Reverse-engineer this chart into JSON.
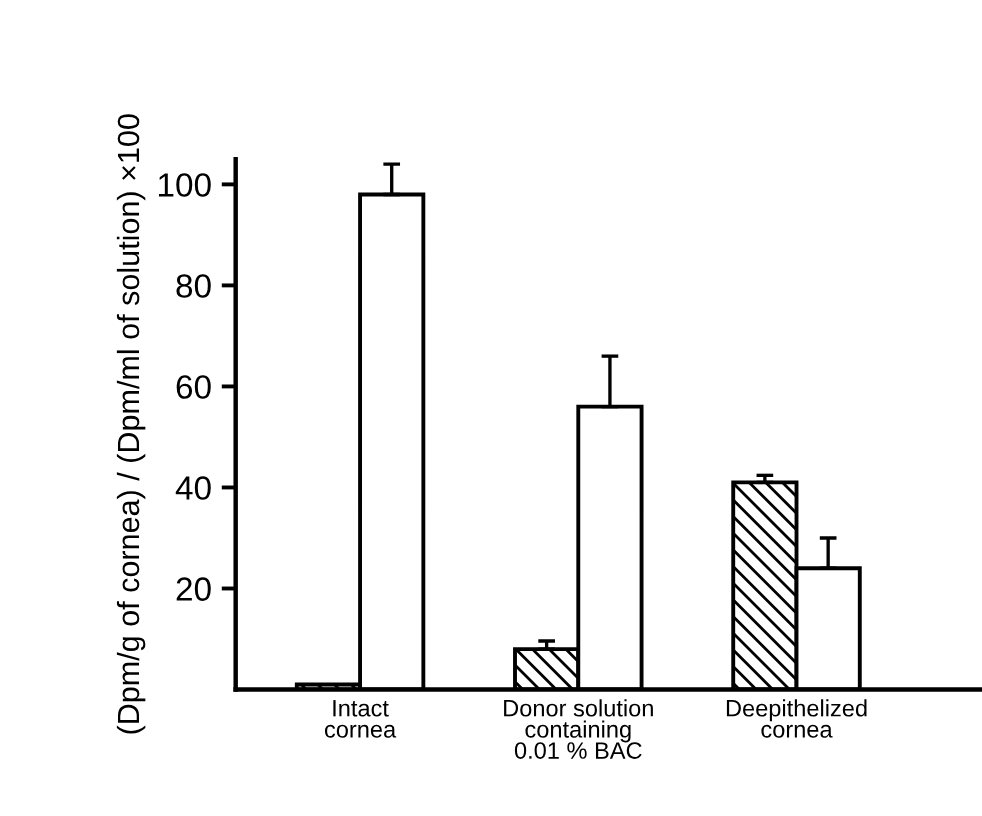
{
  "chart_data": {
    "type": "bar",
    "ylabel": "(Dpm/g of cornea) / (Dpm/ml of solution) ×100",
    "categories": [
      "Intact\ncornea",
      "Donor solution\ncontaining\n0.01 % BAC",
      "Deepithelized\ncornea"
    ],
    "series": [
      {
        "color": "#000000",
        "values": [
          1,
          8,
          41
        ],
        "errors": [
          null,
          1.6,
          1.4
        ]
      },
      {
        "color": "#ffffff",
        "values": [
          98,
          56,
          24
        ],
        "errors": [
          6,
          10,
          6
        ]
      }
    ],
    "ylim": [
      0,
      105
    ],
    "yticks": [
      20,
      40,
      60,
      80,
      100
    ],
    "grid": false,
    "legend": false
  }
}
